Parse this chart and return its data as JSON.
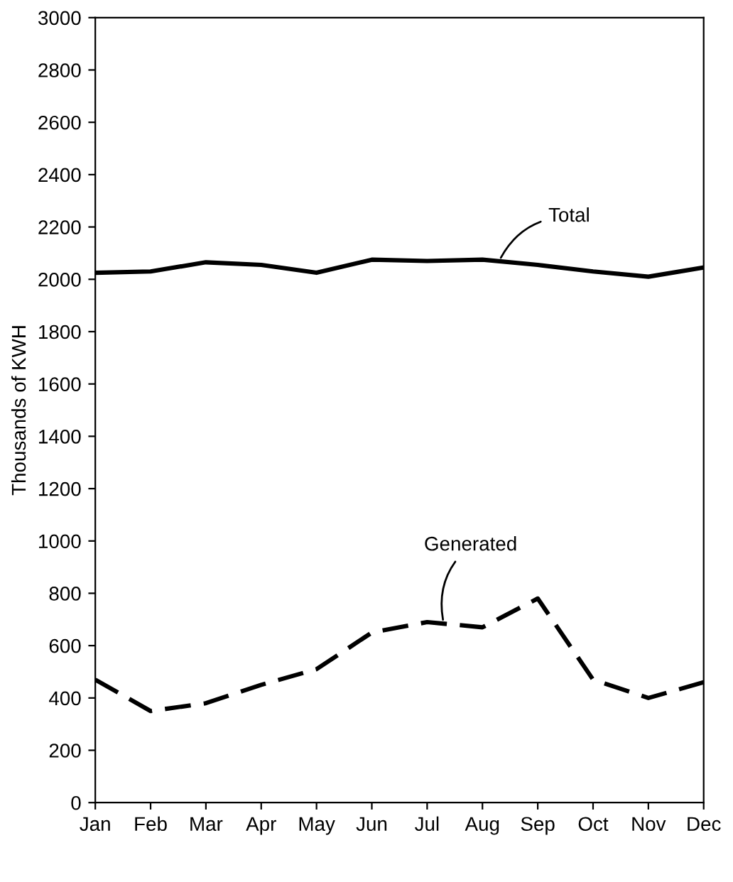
{
  "chart_data": {
    "type": "line",
    "ylabel": "Thousands of KWH",
    "categories": [
      "Jan",
      "Feb",
      "Mar",
      "Apr",
      "May",
      "Jun",
      "Jul",
      "Aug",
      "Sep",
      "Oct",
      "Nov",
      "Dec"
    ],
    "series": [
      {
        "name": "Total",
        "color": "#000000",
        "line_style": "solid",
        "values": [
          2025,
          2030,
          2065,
          2055,
          2025,
          2075,
          2070,
          2075,
          2055,
          2030,
          2010,
          2045
        ]
      },
      {
        "name": "Generated",
        "color": "#000000",
        "line_style": "dashed",
        "values": [
          470,
          350,
          380,
          450,
          510,
          650,
          690,
          670,
          780,
          470,
          400,
          460
        ]
      }
    ],
    "ylim": [
      0,
      3000
    ],
    "yticks": [
      0,
      200,
      400,
      600,
      800,
      1000,
      1200,
      1400,
      1600,
      1800,
      2000,
      2200,
      2400,
      2600,
      2800,
      3000
    ],
    "grid": false,
    "legend": false,
    "marker": "none"
  }
}
